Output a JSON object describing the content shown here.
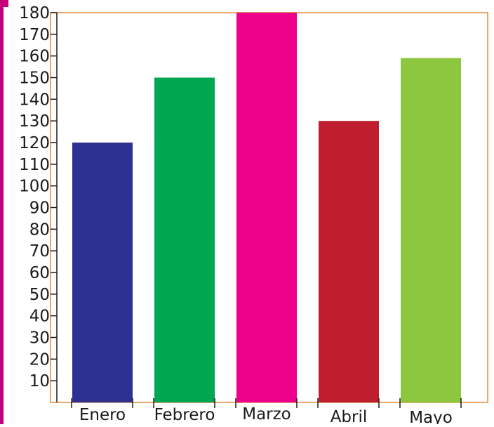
{
  "chart_data": {
    "type": "bar",
    "title": "",
    "xlabel": "",
    "ylabel": "",
    "categories": [
      "Enero",
      "Febrero",
      "Marzo",
      "Abril",
      "Mayo"
    ],
    "values": [
      120,
      150,
      180,
      130,
      159
    ],
    "ylim": [
      0,
      180
    ],
    "yticks": [
      10,
      20,
      30,
      40,
      50,
      60,
      70,
      80,
      90,
      100,
      110,
      120,
      130,
      140,
      150,
      160,
      170,
      180
    ],
    "grid": false,
    "legend": "none",
    "colors": [
      "#2e3192",
      "#00a651",
      "#ec008c",
      "#be1e2d",
      "#8dc63f"
    ],
    "frame_color": "#e08a3c",
    "side_border_color": "#c5007a"
  }
}
